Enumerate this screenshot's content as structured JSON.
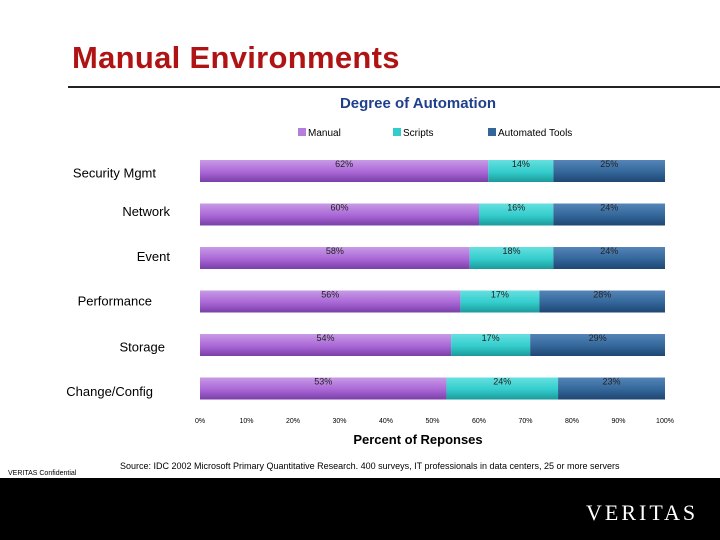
{
  "slide": {
    "title": "Manual Environments",
    "source": "Source: IDC 2002 Microsoft Primary Quantitative Research. 400 surveys, IT professionals in data centers, 25 or more servers",
    "confidential": "VERITAS Confidential",
    "logo_text": "VERITAS"
  },
  "chart_data": {
    "type": "bar",
    "orientation": "horizontal",
    "stacked": true,
    "title": "Degree of Automation",
    "xlabel": "Percent of Reponses",
    "ylabel": "",
    "xlim": [
      0,
      100
    ],
    "x_ticks": [
      "0%",
      "10%",
      "20%",
      "30%",
      "40%",
      "50%",
      "60%",
      "70%",
      "80%",
      "90%",
      "100%"
    ],
    "legend_position": "top",
    "grid": false,
    "categories": [
      "Security Mgmt",
      "Network",
      "Event",
      "Performance",
      "Storage",
      "Change/Config"
    ],
    "series": [
      {
        "name": "Manual",
        "color": "#b57edc",
        "values": [
          62,
          60,
          58,
          56,
          54,
          53
        ]
      },
      {
        "name": "Scripts",
        "color": "#33cccc",
        "values": [
          14,
          16,
          18,
          17,
          17,
          24
        ]
      },
      {
        "name": "Automated Tools",
        "color": "#336699",
        "values": [
          25,
          24,
          24,
          28,
          29,
          23
        ]
      }
    ]
  }
}
